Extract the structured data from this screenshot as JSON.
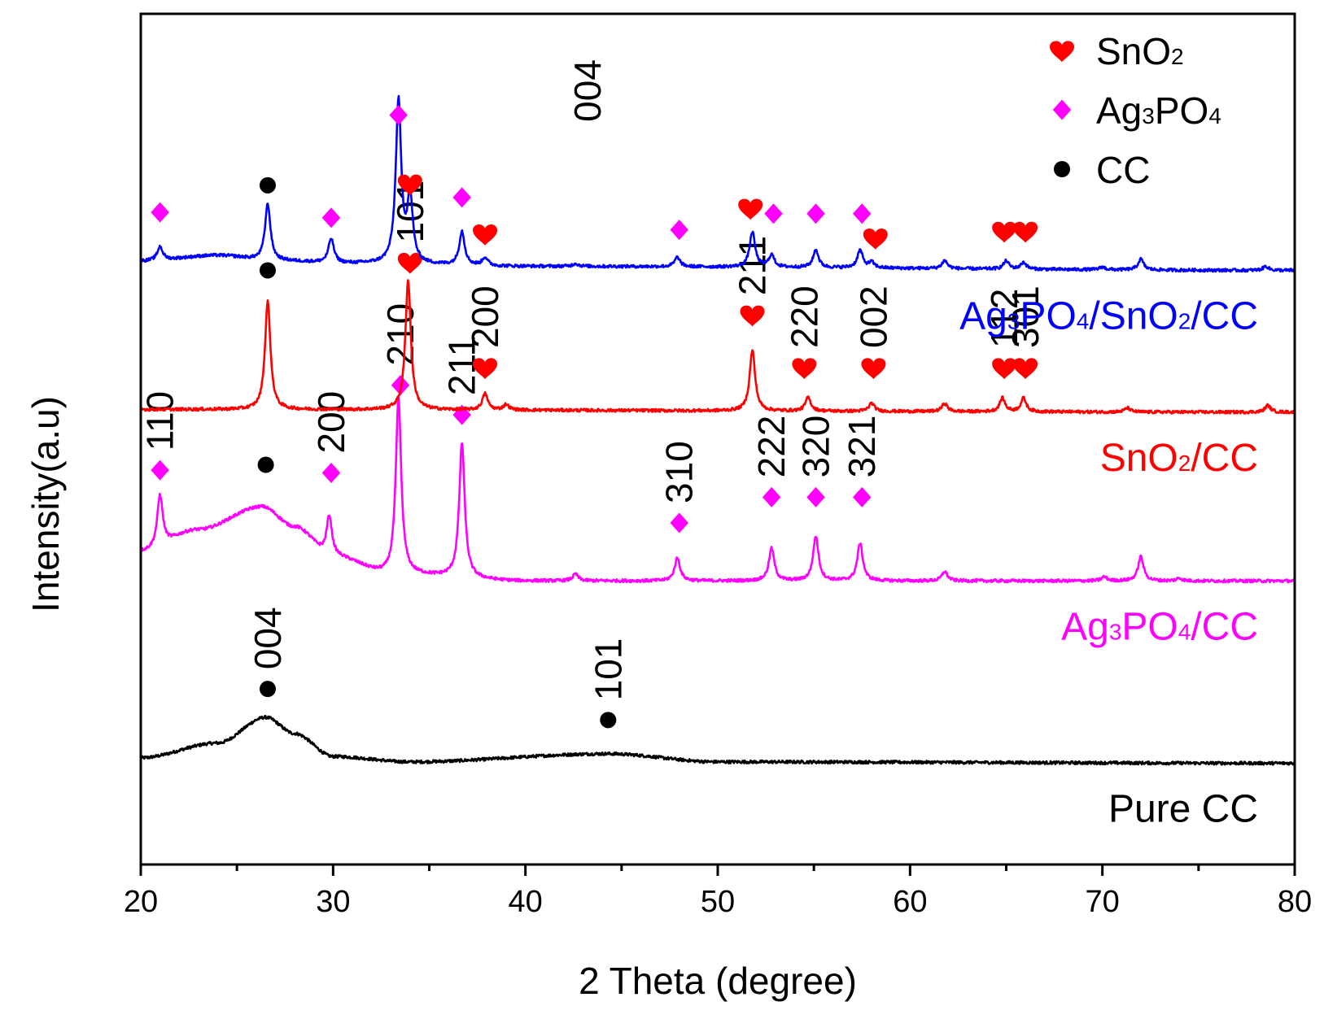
{
  "chart_data": {
    "type": "line",
    "title": "",
    "xlabel": "2 Theta (degree)",
    "ylabel": "Intensity(a.u)",
    "xlim": [
      20,
      80
    ],
    "x_ticks": [
      20,
      30,
      40,
      50,
      60,
      70,
      80
    ],
    "y_ticks": [],
    "grid": false,
    "legend": {
      "placement": "top-right",
      "entries": [
        {
          "marker": "heart",
          "label_main": "SnO",
          "label_sub": "2",
          "label_tail": "",
          "color": "#ff0000"
        },
        {
          "marker": "diamond",
          "label_main": "Ag",
          "label_sub": "3",
          "label_tail": "PO",
          "label_sub2": "4",
          "color": "#ff00ff"
        },
        {
          "marker": "circle",
          "label_main": "CC",
          "color": "#000000"
        }
      ]
    },
    "series": [
      {
        "name": "Pure CC",
        "label_parts": [
          {
            "t": "Pure CC",
            "sub": false
          }
        ],
        "color": "#000000",
        "baseline": 0,
        "background": [
          [
            20,
            0.04
          ],
          [
            24,
            0.15
          ],
          [
            26.5,
            0.34
          ],
          [
            28,
            0.22
          ],
          [
            30,
            0.05
          ],
          [
            34,
            0.01
          ],
          [
            44.3,
            0.07
          ],
          [
            50,
            0.01
          ],
          [
            80,
            0
          ]
        ],
        "peaks": [],
        "markers": [
          {
            "type": "circle",
            "x": 26.6,
            "y": 0.55,
            "label": "004"
          },
          {
            "type": "circle",
            "x": 44.3,
            "y": 0.32,
            "label": "101"
          }
        ]
      },
      {
        "name": "Ag3PO4/CC",
        "label_parts": [
          {
            "t": "Ag",
            "sub": false
          },
          {
            "t": "3",
            "sub": true
          },
          {
            "t": "PO",
            "sub": false
          },
          {
            "t": "4",
            "sub": true
          },
          {
            "t": "/CC",
            "sub": false
          }
        ],
        "color": "#ff00ff",
        "baseline": 1.35,
        "background": [
          [
            20,
            0.22
          ],
          [
            23,
            0.38
          ],
          [
            26.3,
            0.55
          ],
          [
            28,
            0.4
          ],
          [
            30,
            0.18
          ],
          [
            33,
            0.05
          ],
          [
            40,
            0
          ],
          [
            80,
            0
          ]
        ],
        "peaks": [
          [
            21.0,
            0.38
          ],
          [
            29.8,
            0.3
          ],
          [
            33.4,
            1.3
          ],
          [
            36.7,
            1.0
          ],
          [
            42.6,
            0.05
          ],
          [
            47.9,
            0.17
          ],
          [
            52.8,
            0.24
          ],
          [
            55.1,
            0.33
          ],
          [
            57.4,
            0.28
          ],
          [
            61.8,
            0.07
          ],
          [
            70.1,
            0.03
          ],
          [
            72.0,
            0.18
          ],
          [
            74.0,
            0.02
          ]
        ],
        "markers": [
          {
            "type": "diamond",
            "x": 21.0,
            "y": 0.82,
            "label": "110"
          },
          {
            "type": "circle",
            "x": 26.5,
            "y": 0.86,
            "label": ""
          },
          {
            "type": "diamond",
            "x": 29.9,
            "y": 0.8,
            "label": "200"
          },
          {
            "type": "diamond",
            "x": 33.5,
            "y": 1.45,
            "label": "210"
          },
          {
            "type": "diamond",
            "x": 36.7,
            "y": 1.23,
            "label": "211"
          },
          {
            "type": "diamond",
            "x": 48.0,
            "y": 0.43,
            "label": "310"
          },
          {
            "type": "diamond",
            "x": 52.8,
            "y": 0.62,
            "label": "222"
          },
          {
            "type": "diamond",
            "x": 55.1,
            "y": 0.62,
            "label": "320"
          },
          {
            "type": "diamond",
            "x": 57.5,
            "y": 0.62,
            "label": "321"
          }
        ]
      },
      {
        "name": "SnO2/CC",
        "label_parts": [
          {
            "t": "SnO",
            "sub": false
          },
          {
            "t": "2",
            "sub": true
          },
          {
            "t": "/CC",
            "sub": false
          }
        ],
        "color": "#ff0000",
        "baseline": 2.6,
        "background": [
          [
            20,
            0.02
          ],
          [
            80,
            0
          ]
        ],
        "peaks": [
          [
            26.6,
            0.8
          ],
          [
            33.9,
            0.96
          ],
          [
            37.9,
            0.12
          ],
          [
            39.0,
            0.04
          ],
          [
            51.8,
            0.45
          ],
          [
            54.7,
            0.1
          ],
          [
            58.0,
            0.06
          ],
          [
            61.8,
            0.06
          ],
          [
            64.8,
            0.1
          ],
          [
            65.9,
            0.1
          ],
          [
            71.3,
            0.03
          ],
          [
            78.6,
            0.05
          ]
        ],
        "markers": [
          {
            "type": "circle",
            "x": 26.6,
            "y": 1.05,
            "label": ""
          },
          {
            "type": "heart",
            "x": 34.0,
            "y": 1.11,
            "label": "101"
          },
          {
            "type": "heart",
            "x": 37.9,
            "y": 0.33,
            "label": "200"
          },
          {
            "type": "heart",
            "x": 51.8,
            "y": 0.72,
            "label": "211"
          },
          {
            "type": "heart",
            "x": 54.5,
            "y": 0.33,
            "label": "220"
          },
          {
            "type": "heart",
            "x": 58.1,
            "y": 0.33,
            "label": "002"
          },
          {
            "type": "heart",
            "x": 64.9,
            "y": 0.33,
            "label": "112"
          },
          {
            "type": "heart",
            "x": 66.0,
            "y": 0.33,
            "label": "301"
          }
        ]
      },
      {
        "name": "Ag3PO4/SnO2/CC",
        "label_parts": [
          {
            "t": "Ag",
            "sub": false
          },
          {
            "t": "3",
            "sub": true
          },
          {
            "t": "PO",
            "sub": false
          },
          {
            "t": "4",
            "sub": true
          },
          {
            "t": "/SnO",
            "sub": false
          },
          {
            "t": "2",
            "sub": true
          },
          {
            "t": "/CC",
            "sub": false
          }
        ],
        "color": "#0000ff",
        "baseline": 3.65,
        "background": [
          [
            20,
            0.07
          ],
          [
            24,
            0.11
          ],
          [
            27,
            0.07
          ],
          [
            31,
            0.05
          ],
          [
            40,
            0.03
          ],
          [
            80,
            0
          ]
        ],
        "peaks": [
          [
            21.0,
            0.1
          ],
          [
            26.6,
            0.42
          ],
          [
            29.9,
            0.18
          ],
          [
            33.4,
            1.2
          ],
          [
            34.0,
            0.48
          ],
          [
            36.7,
            0.25
          ],
          [
            37.9,
            0.06
          ],
          [
            42.6,
            0.02
          ],
          [
            47.9,
            0.07
          ],
          [
            51.8,
            0.26
          ],
          [
            52.8,
            0.09
          ],
          [
            55.1,
            0.13
          ],
          [
            57.4,
            0.13
          ],
          [
            58.0,
            0.04
          ],
          [
            61.8,
            0.06
          ],
          [
            65.0,
            0.06
          ],
          [
            65.9,
            0.05
          ],
          [
            70.0,
            0.02
          ],
          [
            72.0,
            0.08
          ],
          [
            78.5,
            0.03
          ]
        ],
        "markers": [
          {
            "type": "diamond",
            "x": 21.0,
            "y": 0.43,
            "label": ""
          },
          {
            "type": "circle",
            "x": 26.6,
            "y": 0.63,
            "label": ""
          },
          {
            "type": "diamond",
            "x": 29.9,
            "y": 0.39,
            "label": ""
          },
          {
            "type": "diamond",
            "x": 33.4,
            "y": 1.15,
            "label": ""
          },
          {
            "type": "heart",
            "x": 34.0,
            "y": 0.64,
            "label": ""
          },
          {
            "type": "diamond",
            "x": 36.7,
            "y": 0.54,
            "label": ""
          },
          {
            "type": "heart",
            "x": 37.9,
            "y": 0.27,
            "label": ""
          },
          {
            "type": "diamond",
            "x": 48.0,
            "y": 0.3,
            "label": ""
          },
          {
            "type": "heart",
            "x": 51.7,
            "y": 0.46,
            "label": ""
          },
          {
            "type": "diamond",
            "x": 52.9,
            "y": 0.42,
            "label": ""
          },
          {
            "type": "diamond",
            "x": 55.1,
            "y": 0.42,
            "label": ""
          },
          {
            "type": "diamond",
            "x": 57.5,
            "y": 0.42,
            "label": ""
          },
          {
            "type": "heart",
            "x": 58.2,
            "y": 0.24,
            "label": ""
          },
          {
            "type": "heart",
            "x": 64.9,
            "y": 0.29,
            "label": ""
          },
          {
            "type": "heart",
            "x": 66.0,
            "y": 0.29,
            "label": ""
          }
        ]
      }
    ],
    "annotations": [
      {
        "text": "004",
        "x": 43.9,
        "y": 4.75
      }
    ],
    "y_range": [
      -0.75,
      5.55
    ]
  }
}
